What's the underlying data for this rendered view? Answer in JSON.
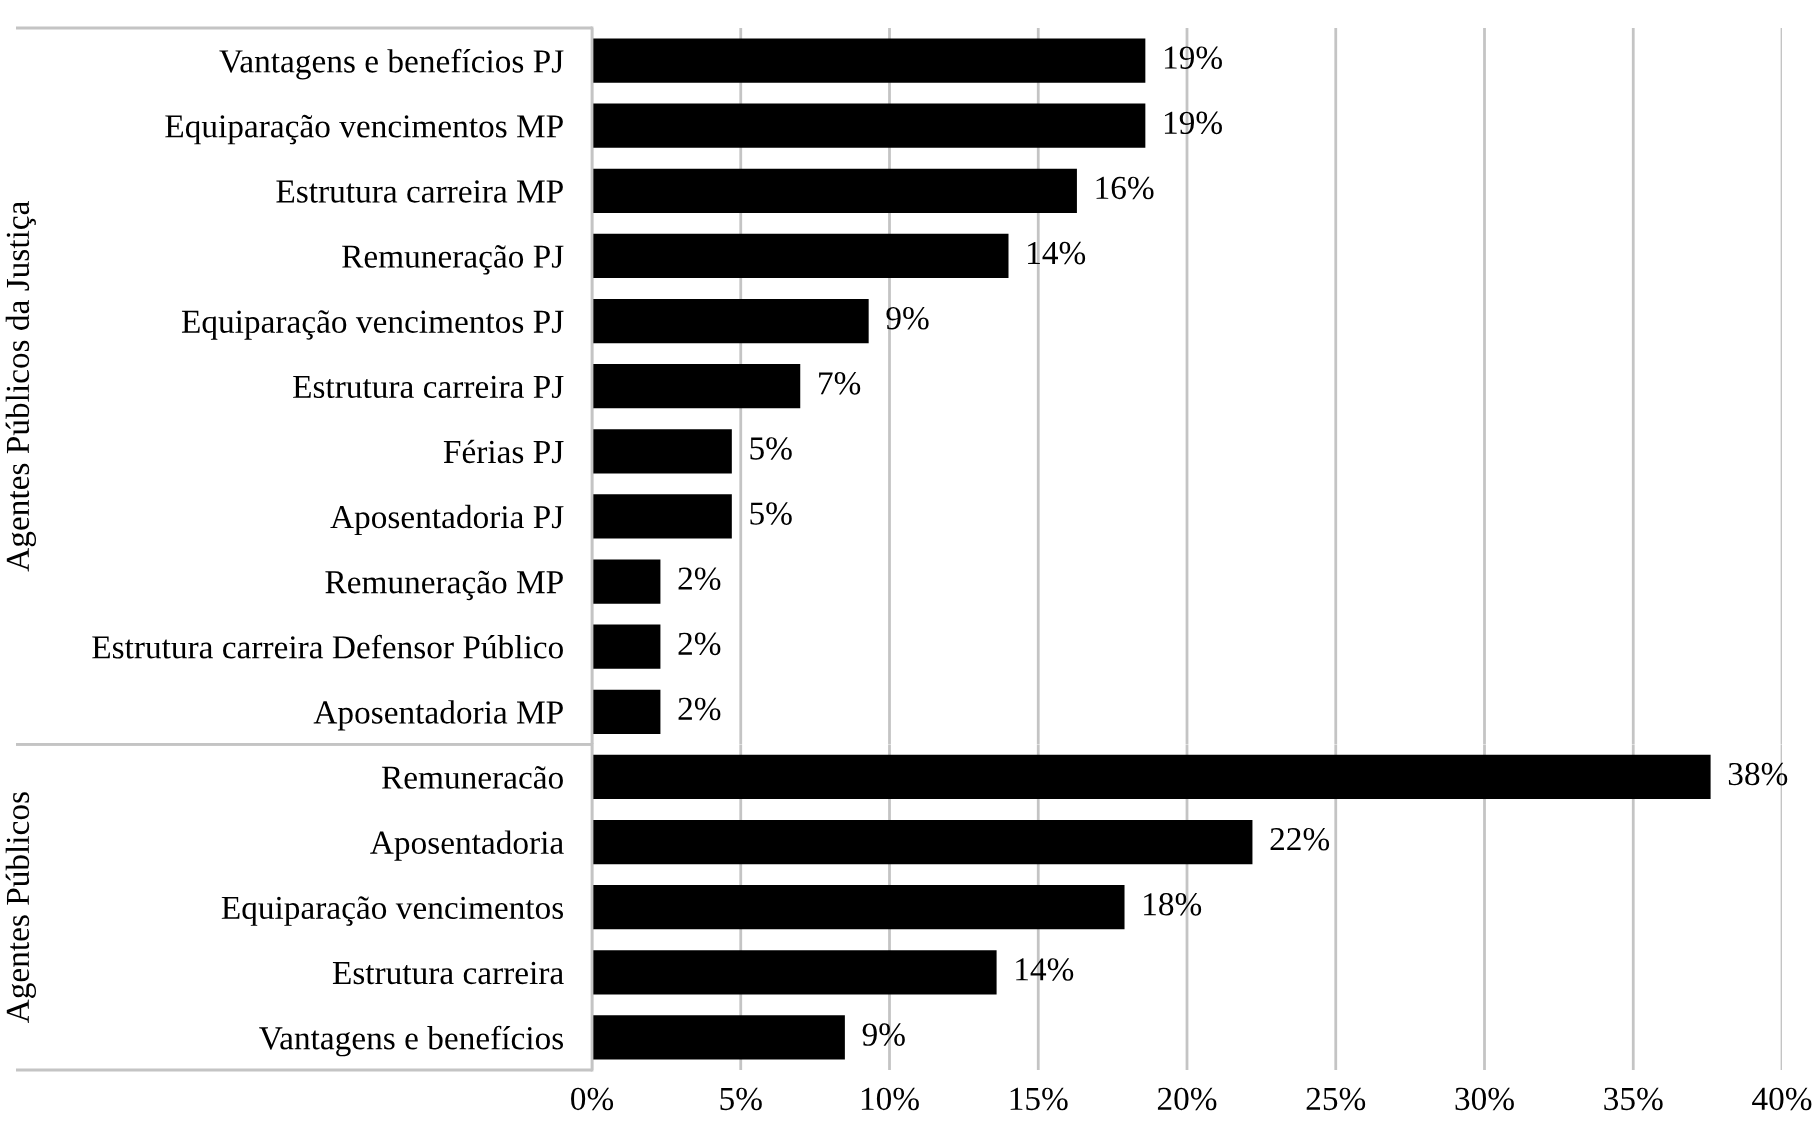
{
  "chart_data": [
    {
      "type": "bar",
      "orientation": "horizontal",
      "ylabel": "Agentes Públicos da Justiça",
      "categories": [
        "Vantagens e benefícios PJ",
        "Equiparação vencimentos MP",
        "Estrutura carreira MP",
        "Remuneração PJ",
        "Equiparação vencimentos PJ",
        "Estrutura carreira PJ",
        "Férias PJ",
        "Aposentadoria PJ",
        "Remuneração MP",
        "Estrutura carreira Defensor Público",
        "Aposentadoria MP"
      ],
      "values": [
        18.6,
        18.6,
        16.3,
        14.0,
        9.3,
        7.0,
        4.7,
        4.7,
        2.3,
        2.3,
        2.3
      ],
      "value_labels": [
        "19%",
        "19%",
        "16%",
        "14%",
        "9%",
        "7%",
        "5%",
        "5%",
        "2%",
        "2%",
        "2%"
      ],
      "color": "#000000",
      "xlim": [
        0,
        40
      ],
      "xticks": [
        {
          "value": 0,
          "label": null
        },
        {
          "value": 5,
          "label": null
        },
        {
          "value": 10,
          "label": null
        },
        {
          "value": 15,
          "label": null
        },
        {
          "value": 20,
          "label": null
        },
        {
          "value": 25,
          "label": null
        },
        {
          "value": 30,
          "label": null
        },
        {
          "value": 35,
          "label": null
        },
        {
          "value": 40,
          "label": null
        }
      ],
      "grid": "x",
      "tick_labels": "y"
    },
    {
      "type": "bar",
      "orientation": "horizontal",
      "ylabel": "Agentes Públicos",
      "categories": [
        "Remuneracão",
        "Aposentadoria",
        "Equiparação vencimentos",
        "Estrutura carreira",
        "Vantagens e benefícios"
      ],
      "values": [
        37.6,
        22.2,
        17.9,
        13.6,
        8.5
      ],
      "value_labels": [
        "38%",
        "22%",
        "18%",
        "14%",
        "9%"
      ],
      "color": "#000000",
      "xlim": [
        0,
        40
      ],
      "xticks": [
        {
          "value": 0,
          "label": "0%"
        },
        {
          "value": 5,
          "label": "5%"
        },
        {
          "value": 10,
          "label": "10%"
        },
        {
          "value": 15,
          "label": "15%"
        },
        {
          "value": 20,
          "label": "20%"
        },
        {
          "value": 25,
          "label": "25%"
        },
        {
          "value": 30,
          "label": "30%"
        },
        {
          "value": 35,
          "label": "35%"
        },
        {
          "value": 40,
          "label": "40%"
        }
      ],
      "grid": "x"
    }
  ]
}
